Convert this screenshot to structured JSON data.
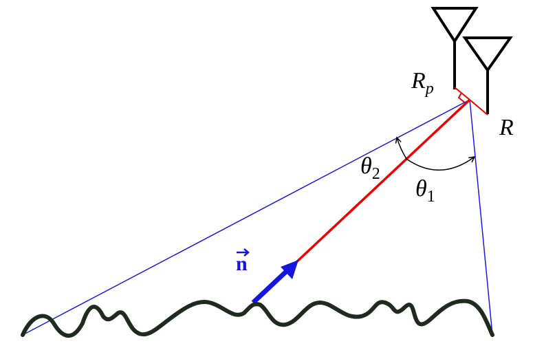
{
  "labels": {
    "receiver_parallel": {
      "main": "R",
      "sub": "p"
    },
    "receiver": {
      "main": "R"
    },
    "angle_2": {
      "main": "θ",
      "sub": "2"
    },
    "angle_1": {
      "main": "θ",
      "sub": "1"
    },
    "normal": {
      "main": "n"
    }
  }
}
